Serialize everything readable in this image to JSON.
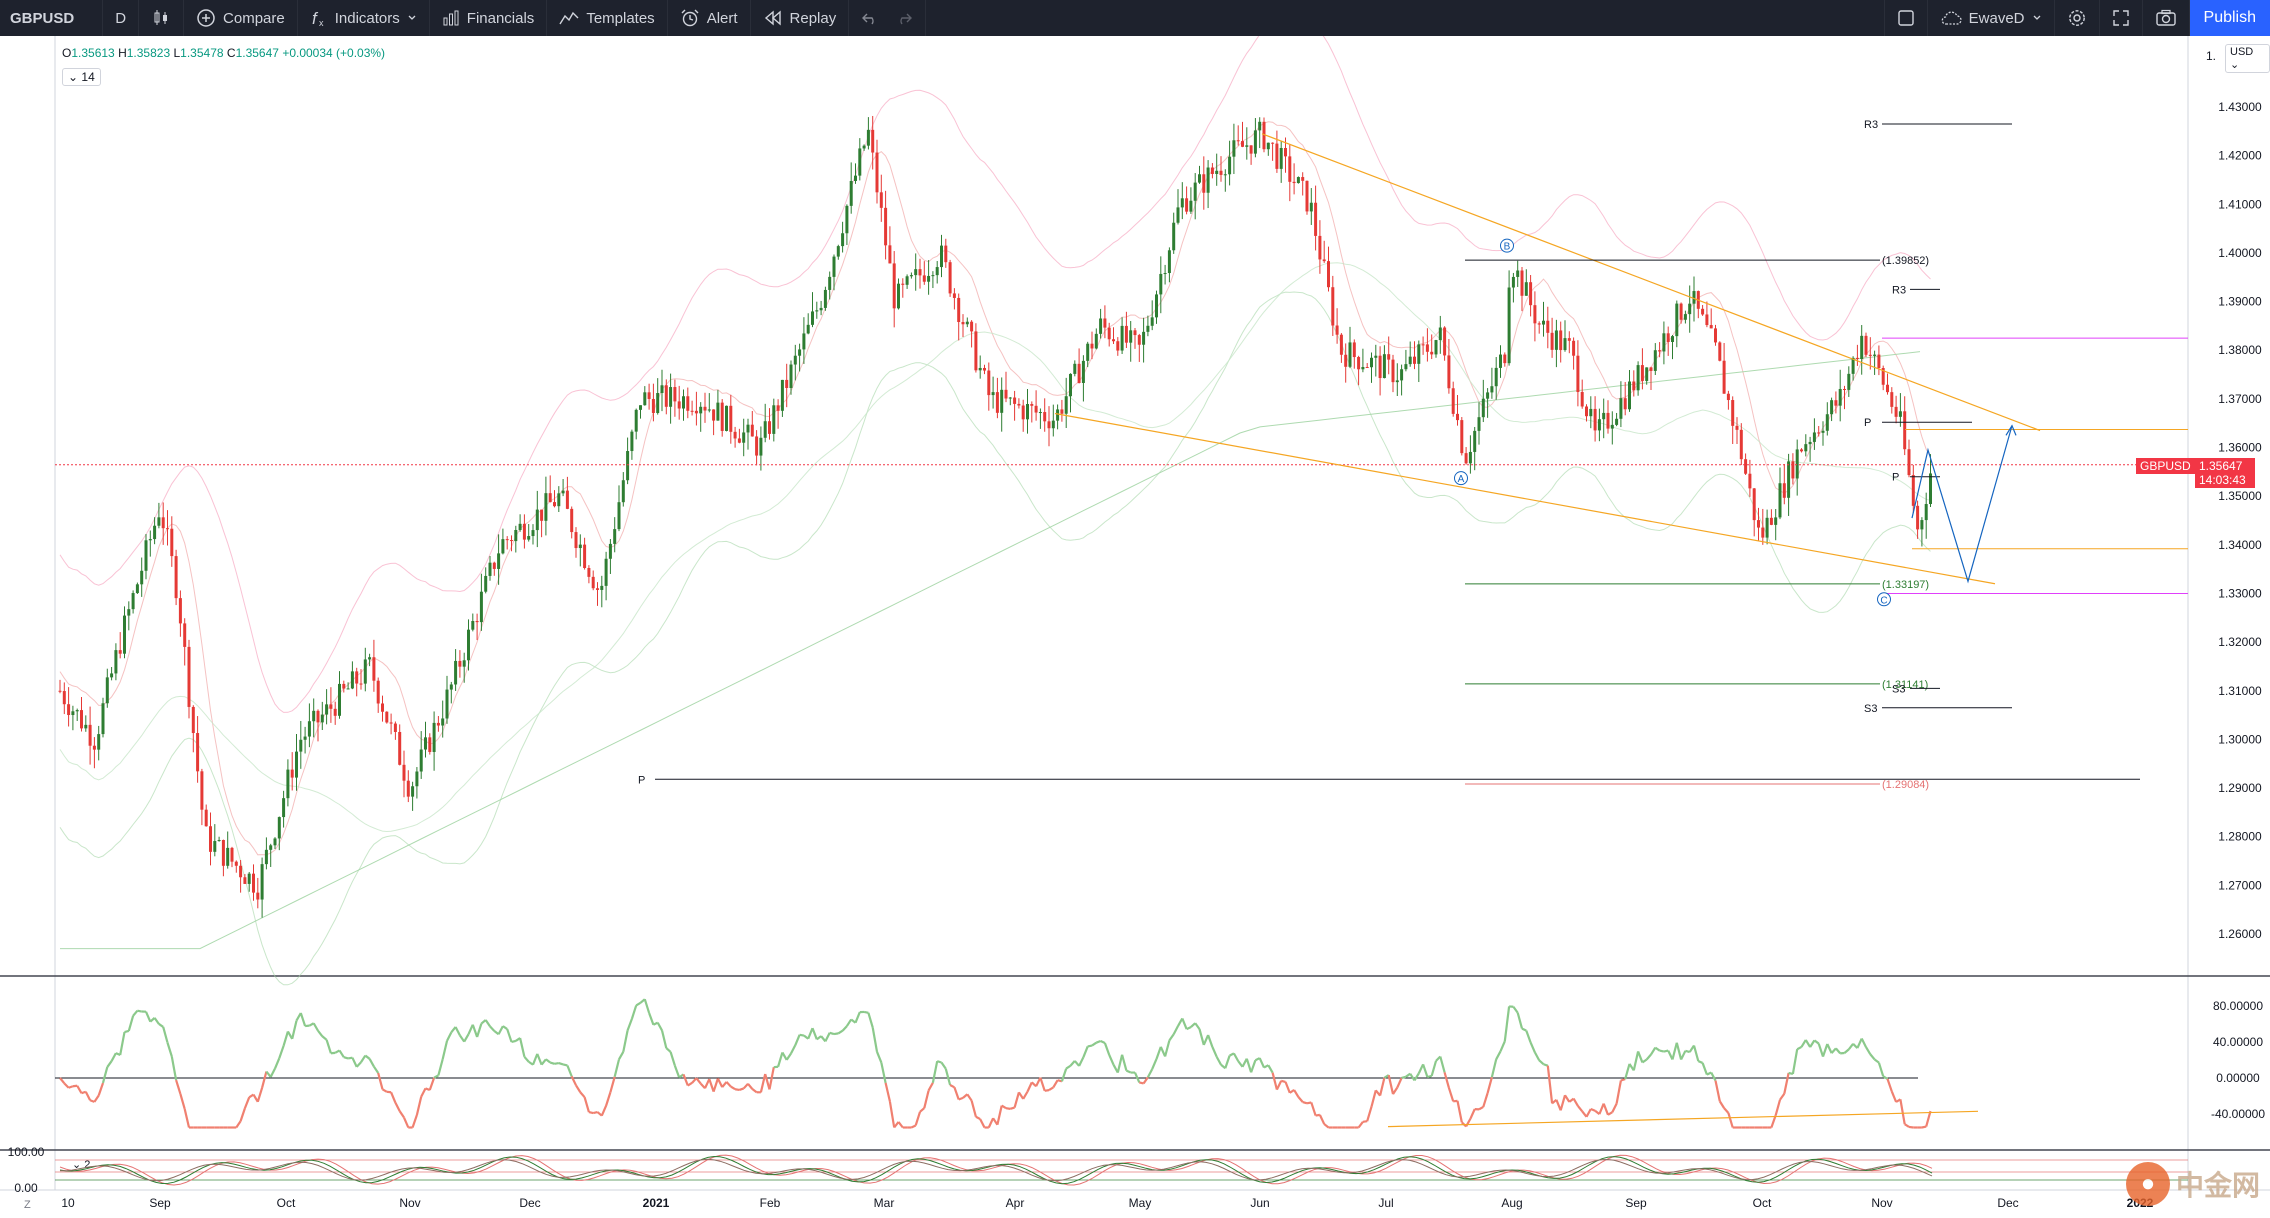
{
  "toolbar": {
    "symbol": "GBPUSD",
    "interval": "D",
    "compare": "Compare",
    "indicators": "Indicators",
    "financials": "Financials",
    "templates": "Templates",
    "alert": "Alert",
    "replay": "Replay",
    "layout_name": "EwaveD",
    "publish": "Publish"
  },
  "legend": {
    "o_label": "O",
    "o": "1.35613",
    "h_label": "H",
    "h": "1.35823",
    "l_label": "L",
    "l": "1.35478",
    "c_label": "C",
    "c": "1.35647",
    "change": "+0.00034 (+0.03%)",
    "length": "14"
  },
  "price_scale": {
    "currency": "USD",
    "ticks": [
      "1.43000",
      "1.42000",
      "1.41000",
      "1.40000",
      "1.39000",
      "1.38000",
      "1.37000",
      "1.36000",
      "1.35000",
      "1.34000",
      "1.33000",
      "1.32000",
      "1.31000",
      "1.30000",
      "1.29000",
      "1.28000",
      "1.27000",
      "1.26000"
    ],
    "top_partial": "1.",
    "last_price": "1.35647",
    "countdown": "14:03:43",
    "symbol_tag": "GBPUSD"
  },
  "time_axis": [
    "10",
    "Sep",
    "Oct",
    "Nov",
    "Dec",
    "2021",
    "Feb",
    "Mar",
    "Apr",
    "May",
    "Jun",
    "Jul",
    "Aug",
    "Sep",
    "Oct",
    "Nov",
    "Dec",
    "2022"
  ],
  "annotations": {
    "fib_1": "(1.39852)",
    "fib_2": "(1.33197)",
    "fib_3": "(1.31141)",
    "fib_4": "(1.29084)",
    "r3_a": "R3",
    "r3_b": "R3",
    "s3_a": "S3",
    "s3_b": "S3",
    "p_a": "P",
    "p_b": "P",
    "p_c": "P",
    "wave_a": "A",
    "wave_b": "B",
    "wave_c": "C"
  },
  "rsi_pane": {
    "ticks": [
      "80.00000",
      "40.00000",
      "0.00000",
      "-40.00000"
    ]
  },
  "osc_pane": {
    "ticks": [
      "100.00",
      "0.00"
    ],
    "length": "2"
  },
  "colors": {
    "up": "#089981",
    "down": "#f23645",
    "candle_up": "#2e7d32",
    "candle_down": "#e53935",
    "orange": "#f5a623",
    "magenta": "#e040fb",
    "blue": "#2962ff"
  },
  "chart_data": {
    "type": "candlestick",
    "symbol": "GBPUSD",
    "timeframe": "D",
    "ylim": [
      1.255,
      1.44
    ],
    "last": 1.35647,
    "x_range": [
      "Aug 2020",
      "Jan 2022"
    ],
    "swing_points": [
      {
        "date": "Aug 2020",
        "price": 1.31
      },
      {
        "date": "Sep 2020",
        "price": 1.348
      },
      {
        "date": "Sep 2020",
        "price": 1.27
      },
      {
        "date": "Jan 2021",
        "price": 1.37
      },
      {
        "date": "Feb 2021",
        "price": 1.425
      },
      {
        "date": "Apr 2021",
        "price": 1.366
      },
      {
        "date": "Jun 2021",
        "price": 1.4245
      },
      {
        "date": "Jul 2021",
        "price": 1.358
      },
      {
        "date": "Aug 2021",
        "price": 1.399
      },
      {
        "date": "Sep 2021",
        "price": 1.359
      },
      {
        "date": "Sep 2021",
        "price": 1.391
      },
      {
        "date": "Oct 2021",
        "price": 1.341
      },
      {
        "date": "Oct 2021",
        "price": 1.383
      },
      {
        "date": "Nov 2021",
        "price": 1.3425
      },
      {
        "date": "Nov 2021",
        "price": 1.35647
      }
    ],
    "levels": [
      1.39852,
      1.33197,
      1.31141,
      1.29084
    ]
  }
}
